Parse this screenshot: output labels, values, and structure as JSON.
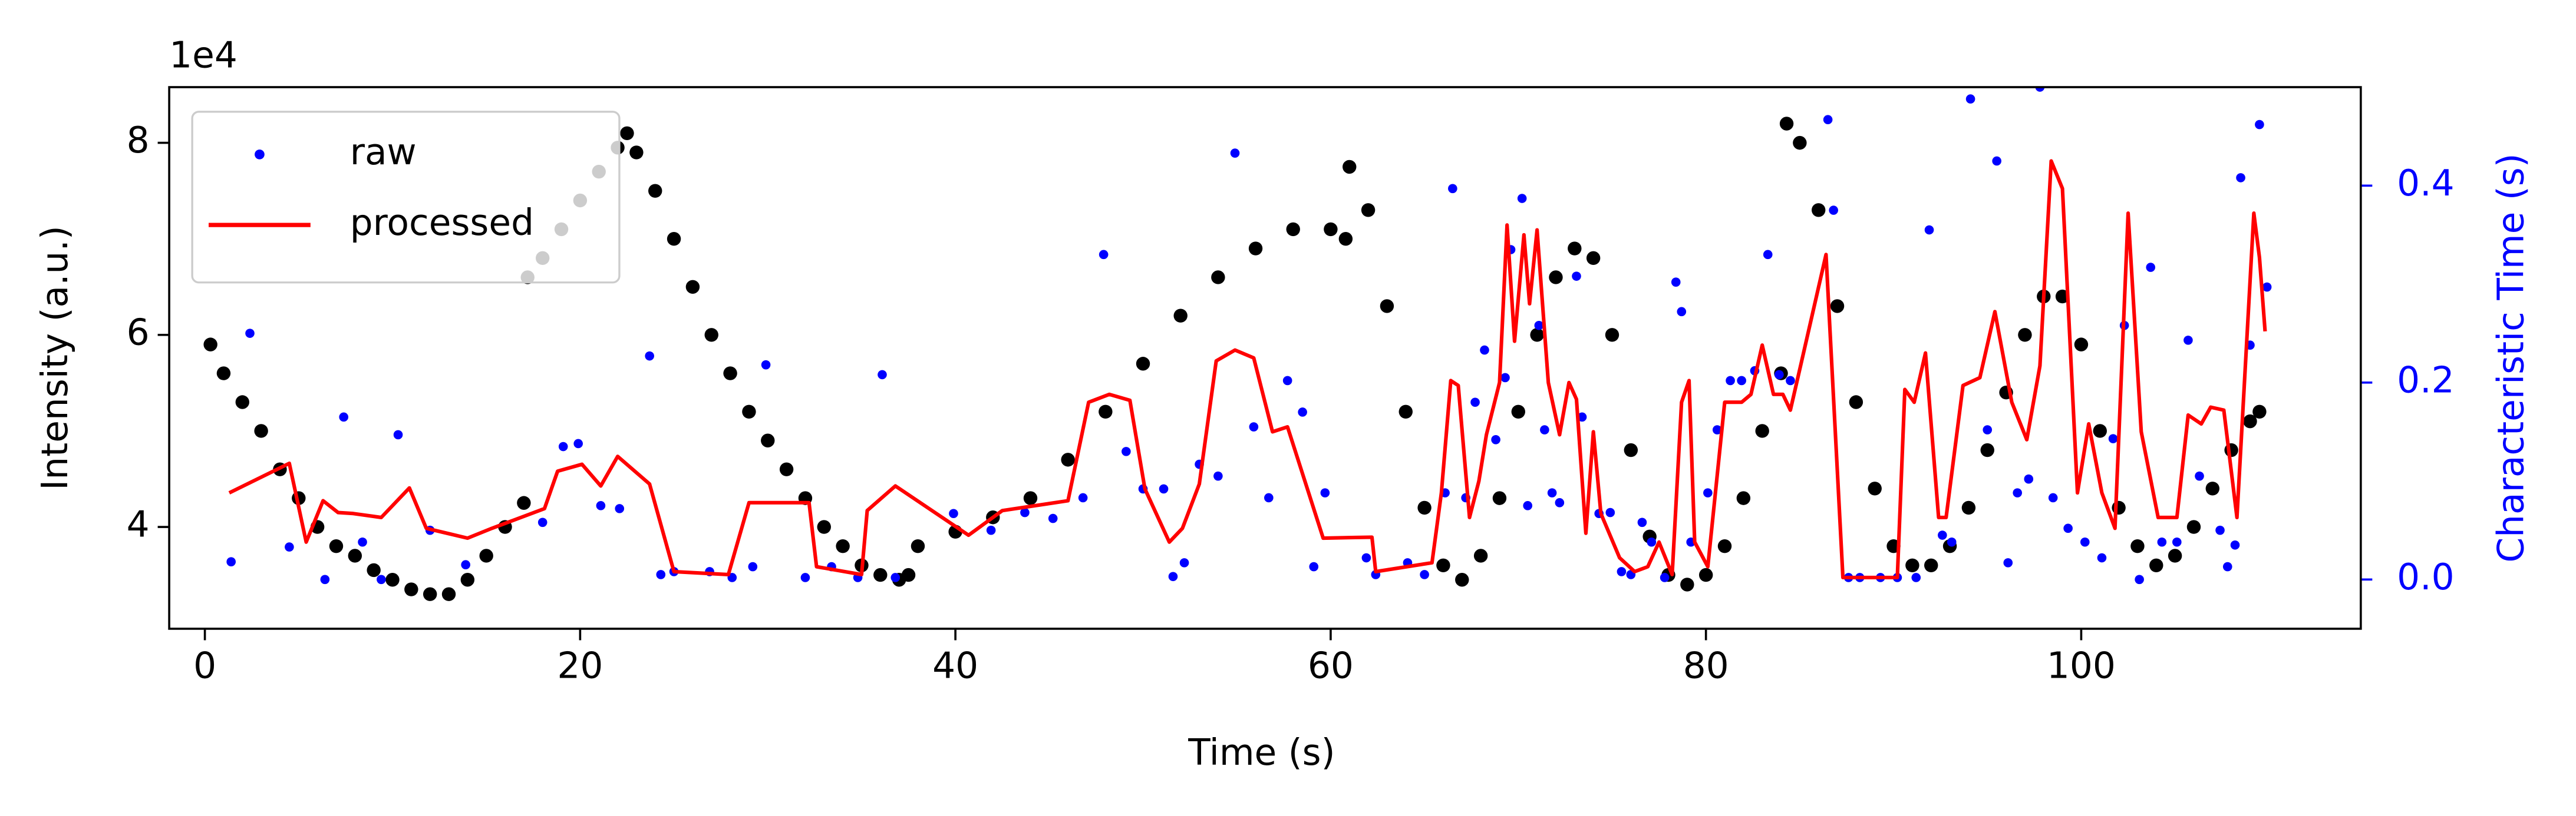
{
  "chart_data": {
    "type": "scatter",
    "xlabel": "Time (s)",
    "ylabel": "Intensity (a.u.)",
    "y2label": "Characteristic Time (s)",
    "y_offset_label": "1e4",
    "y2_color": "#0000ff",
    "xlim": [
      -1.9,
      114.9
    ],
    "ylim": [
      2.94,
      8.58
    ],
    "y2lim": [
      -0.05,
      0.5
    ],
    "xticks": [
      0,
      20,
      40,
      60,
      80,
      100
    ],
    "yticks": [
      4,
      6,
      8
    ],
    "y2ticks": [
      {
        "value": 0,
        "label": "0.0"
      },
      {
        "value": 0.2,
        "label": "0.2"
      },
      {
        "value": 0.4,
        "label": "0.4"
      }
    ],
    "legend": "upper left",
    "series": [
      {
        "color": "#000000",
        "style": "marker",
        "x": [
          0.3,
          1,
          2,
          3,
          4,
          5,
          6,
          7,
          8,
          9,
          10,
          11,
          12,
          13,
          14,
          15,
          16,
          17,
          17.2,
          18,
          19,
          20,
          21,
          22,
          22.5,
          23,
          24,
          25,
          26,
          27,
          28,
          29,
          30,
          31,
          32,
          33,
          34,
          35,
          36,
          37,
          37.5,
          38,
          40,
          42,
          44,
          46,
          48,
          50,
          52,
          54,
          56,
          58,
          60,
          60.8,
          61,
          62,
          63,
          64,
          65,
          66,
          67,
          68,
          69,
          70,
          71,
          72,
          73,
          74,
          75,
          76,
          77,
          78,
          79,
          80,
          81,
          82,
          83,
          84,
          84.3,
          85,
          86,
          87,
          88,
          89,
          90,
          91,
          92,
          93,
          94,
          95,
          96,
          97,
          98,
          99,
          100,
          101,
          102,
          103,
          104,
          105,
          106,
          107,
          108,
          109,
          109.5
        ],
        "values": [
          5.9,
          5.6,
          5.3,
          5.0,
          4.6,
          4.3,
          4.0,
          3.8,
          3.7,
          3.55,
          3.45,
          3.35,
          3.3,
          3.3,
          3.45,
          3.7,
          4.0,
          4.25,
          6.6,
          6.8,
          7.1,
          7.4,
          7.7,
          7.95,
          8.1,
          7.9,
          7.5,
          7.0,
          6.5,
          6.0,
          5.6,
          5.2,
          4.9,
          4.6,
          4.3,
          4.0,
          3.8,
          3.6,
          3.5,
          3.45,
          3.5,
          3.8,
          3.95,
          4.1,
          4.3,
          4.7,
          5.2,
          5.7,
          6.2,
          6.6,
          6.9,
          7.1,
          7.1,
          7.0,
          7.75,
          7.3,
          6.3,
          5.2,
          4.2,
          3.6,
          3.45,
          3.7,
          4.3,
          5.2,
          6.0,
          6.6,
          6.9,
          6.8,
          6.0,
          4.8,
          3.9,
          3.5,
          3.4,
          3.5,
          3.8,
          4.3,
          5.0,
          5.6,
          8.2,
          8.0,
          7.3,
          6.3,
          5.3,
          4.4,
          3.8,
          3.6,
          3.6,
          3.8,
          4.2,
          4.8,
          5.4,
          6.0,
          6.4,
          6.4,
          5.9,
          5.0,
          4.2,
          3.8,
          3.6,
          3.7,
          4.0,
          4.4,
          4.8,
          5.1,
          5.2
        ]
      },
      {
        "name": "raw",
        "color": "#0000ff",
        "style": "marker",
        "axis": "y2",
        "x": [
          1.4,
          2.4,
          4.5,
          6.4,
          7.4,
          8.4,
          9.4,
          10.3,
          12.0,
          13.9,
          18.0,
          19.1,
          19.9,
          21.1,
          22.1,
          23.7,
          24.3,
          25.0,
          26.9,
          28.1,
          29.2,
          29.9,
          32.0,
          33.4,
          34.8,
          36.1,
          36.8,
          39.9,
          41.9,
          43.7,
          45.2,
          46.8,
          47.9,
          49.1,
          50.0,
          51.1,
          51.6,
          52.2,
          53.0,
          54.0,
          54.9,
          55.9,
          56.7,
          57.7,
          58.5,
          59.1,
          59.7,
          61.9,
          62.4,
          64.1,
          65.0,
          66.1,
          66.5,
          67.2,
          67.7,
          68.2,
          68.8,
          69.3,
          69.6,
          70.2,
          70.5,
          71.1,
          71.4,
          71.8,
          72.2,
          73.1,
          73.4,
          74.3,
          74.9,
          75.5,
          76.0,
          76.6,
          77.1,
          77.8,
          78.4,
          78.7,
          79.2,
          80.1,
          80.6,
          81.3,
          81.9,
          82.6,
          83.3,
          83.9,
          84.5,
          86.5,
          86.8,
          87.6,
          88.2,
          89.3,
          90.2,
          91.2,
          91.9,
          92.6,
          93.1,
          94.1,
          95.0,
          95.5,
          96.1,
          96.6,
          97.2,
          97.8,
          98.5,
          99.3,
          100.2,
          101.1,
          101.7,
          102.3,
          103.1,
          103.7,
          104.3,
          105.1,
          105.7,
          106.3,
          107.4,
          107.8,
          108.2,
          108.5,
          109.0,
          109.5,
          109.9
        ],
        "values": [
          0.018,
          0.25,
          0.033,
          0.0,
          0.165,
          0.038,
          0.0,
          0.147,
          0.05,
          0.015,
          0.058,
          0.135,
          0.138,
          0.075,
          0.072,
          0.227,
          0.005,
          0.008,
          0.008,
          0.002,
          0.013,
          0.218,
          0.002,
          0.013,
          0.002,
          0.208,
          0.002,
          0.067,
          0.05,
          0.068,
          0.062,
          0.083,
          0.33,
          0.13,
          0.092,
          0.092,
          0.003,
          0.017,
          0.117,
          0.105,
          0.433,
          0.155,
          0.083,
          0.202,
          0.17,
          0.013,
          0.088,
          0.022,
          0.005,
          0.017,
          0.005,
          0.088,
          0.397,
          0.083,
          0.18,
          0.233,
          0.142,
          0.205,
          0.335,
          0.387,
          0.075,
          0.258,
          0.152,
          0.088,
          0.078,
          0.308,
          0.165,
          0.067,
          0.068,
          0.008,
          0.005,
          0.058,
          0.038,
          0.002,
          0.302,
          0.272,
          0.038,
          0.088,
          0.152,
          0.202,
          0.202,
          0.212,
          0.33,
          0.208,
          0.202,
          0.467,
          0.375,
          0.002,
          0.002,
          0.002,
          0.002,
          0.002,
          0.355,
          0.045,
          0.038,
          0.488,
          0.152,
          0.425,
          0.017,
          0.088,
          0.102,
          0.5,
          0.083,
          0.052,
          0.038,
          0.022,
          0.143,
          0.258,
          0.0,
          0.317,
          0.038,
          0.038,
          0.243,
          0.105,
          0.05,
          0.013,
          0.035,
          0.408,
          0.238,
          0.462,
          0.297
        ]
      },
      {
        "name": "processed",
        "color": "#ff0000",
        "style": "line",
        "axis": "y2",
        "x": [
          1.3,
          4.5,
          5.4,
          6.3,
          7.1,
          7.9,
          9.4,
          10.9,
          11.8,
          14.0,
          15.3,
          18.1,
          18.8,
          20.1,
          21.1,
          22.0,
          23.7,
          25.0,
          27.9,
          29.0,
          32.2,
          32.6,
          35.0,
          35.3,
          36.8,
          40.7,
          42.5,
          46.0,
          47.1,
          48.2,
          49.3,
          50.1,
          51.4,
          52.1,
          53.0,
          53.9,
          54.9,
          55.9,
          56.9,
          57.7,
          59.6,
          62.2,
          62.4,
          65.4,
          65.9,
          66.4,
          66.8,
          67.4,
          67.9,
          68.3,
          69.0,
          69.4,
          69.8,
          70.3,
          70.6,
          71.0,
          71.6,
          72.2,
          72.7,
          73.1,
          73.6,
          74.0,
          74.4,
          75.4,
          76.2,
          76.9,
          77.5,
          78.2,
          78.7,
          79.1,
          79.4,
          80.1,
          81.0,
          81.9,
          82.4,
          83.0,
          83.6,
          84.1,
          84.5,
          85.2,
          86.4,
          87.3,
          90.2,
          90.6,
          91.1,
          91.7,
          92.4,
          92.8,
          93.7,
          94.6,
          95.4,
          96.3,
          97.1,
          97.8,
          98.4,
          99.0,
          99.8,
          100.4,
          101.1,
          101.8,
          102.5,
          103.2,
          104.1,
          105.1,
          105.7,
          106.4,
          106.9,
          107.6,
          108.3,
          109.2,
          109.5,
          109.8
        ],
        "values": [
          0.088,
          0.118,
          0.038,
          0.08,
          0.068,
          0.067,
          0.063,
          0.093,
          0.052,
          0.042,
          0.052,
          0.072,
          0.11,
          0.117,
          0.095,
          0.125,
          0.097,
          0.008,
          0.005,
          0.078,
          0.078,
          0.013,
          0.005,
          0.07,
          0.095,
          0.045,
          0.07,
          0.08,
          0.18,
          0.188,
          0.182,
          0.092,
          0.038,
          0.052,
          0.097,
          0.222,
          0.233,
          0.225,
          0.15,
          0.155,
          0.042,
          0.043,
          0.008,
          0.017,
          0.088,
          0.202,
          0.197,
          0.063,
          0.1,
          0.147,
          0.2,
          0.36,
          0.242,
          0.35,
          0.28,
          0.355,
          0.2,
          0.147,
          0.2,
          0.183,
          0.047,
          0.15,
          0.067,
          0.022,
          0.008,
          0.013,
          0.038,
          0.005,
          0.18,
          0.202,
          0.038,
          0.013,
          0.18,
          0.18,
          0.188,
          0.238,
          0.188,
          0.188,
          0.172,
          0.23,
          0.33,
          0.002,
          0.002,
          0.193,
          0.18,
          0.23,
          0.063,
          0.063,
          0.197,
          0.205,
          0.272,
          0.18,
          0.142,
          0.217,
          0.425,
          0.397,
          0.088,
          0.158,
          0.088,
          0.052,
          0.372,
          0.15,
          0.063,
          0.063,
          0.167,
          0.158,
          0.175,
          0.172,
          0.063,
          0.372,
          0.327,
          0.252
        ]
      }
    ]
  }
}
